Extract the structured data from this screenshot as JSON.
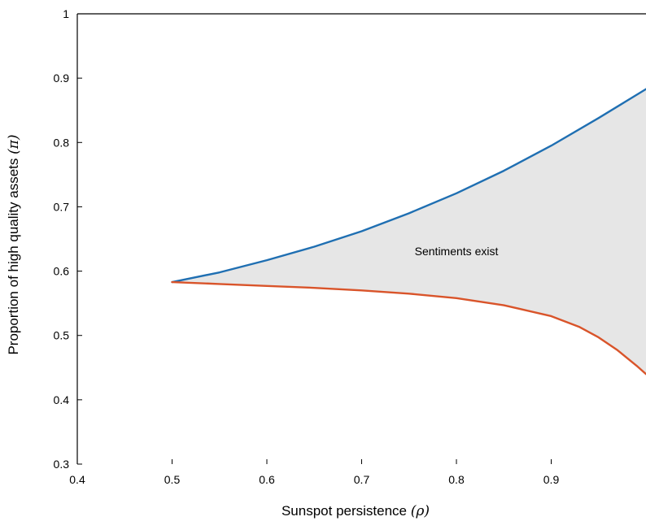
{
  "chart_data": {
    "type": "line",
    "title": "",
    "xlabel": "Sunspot persistence",
    "xlabel_symbol": "(ρ)",
    "ylabel": "Proportion of high quality assets",
    "ylabel_symbol": "(π)",
    "xlim": [
      0.4,
      1.0
    ],
    "ylim": [
      0.3,
      1.0
    ],
    "xticks": [
      0.4,
      0.5,
      0.6,
      0.7,
      0.8,
      0.9
    ],
    "xtick_labels": [
      "0.4",
      "0.5",
      "0.6",
      "0.7",
      "0.8",
      "0.9"
    ],
    "yticks": [
      0.3,
      0.4,
      0.5,
      0.6,
      0.7,
      0.8,
      0.9,
      1.0
    ],
    "ytick_labels": [
      "0.3",
      "0.4",
      "0.5",
      "0.6",
      "0.7",
      "0.8",
      "0.9",
      "1"
    ],
    "grid": false,
    "annotation": {
      "text": "Sentiments exist",
      "x": 0.8,
      "y": 0.625
    },
    "fill_color": "#e6e6e6",
    "series": [
      {
        "color": "#1f6fb2",
        "x": [
          0.5,
          0.55,
          0.6,
          0.65,
          0.7,
          0.75,
          0.8,
          0.85,
          0.9,
          0.95,
          1.0
        ],
        "y": [
          0.583,
          0.598,
          0.617,
          0.638,
          0.662,
          0.69,
          0.721,
          0.756,
          0.795,
          0.838,
          0.883
        ]
      },
      {
        "color": "#d9542a",
        "x": [
          0.5,
          0.55,
          0.6,
          0.65,
          0.7,
          0.75,
          0.8,
          0.85,
          0.9,
          0.93,
          0.95,
          0.97,
          0.98,
          0.99,
          1.0
        ],
        "y": [
          0.583,
          0.58,
          0.577,
          0.574,
          0.57,
          0.565,
          0.558,
          0.547,
          0.53,
          0.513,
          0.497,
          0.477,
          0.465,
          0.453,
          0.44
        ]
      }
    ]
  }
}
